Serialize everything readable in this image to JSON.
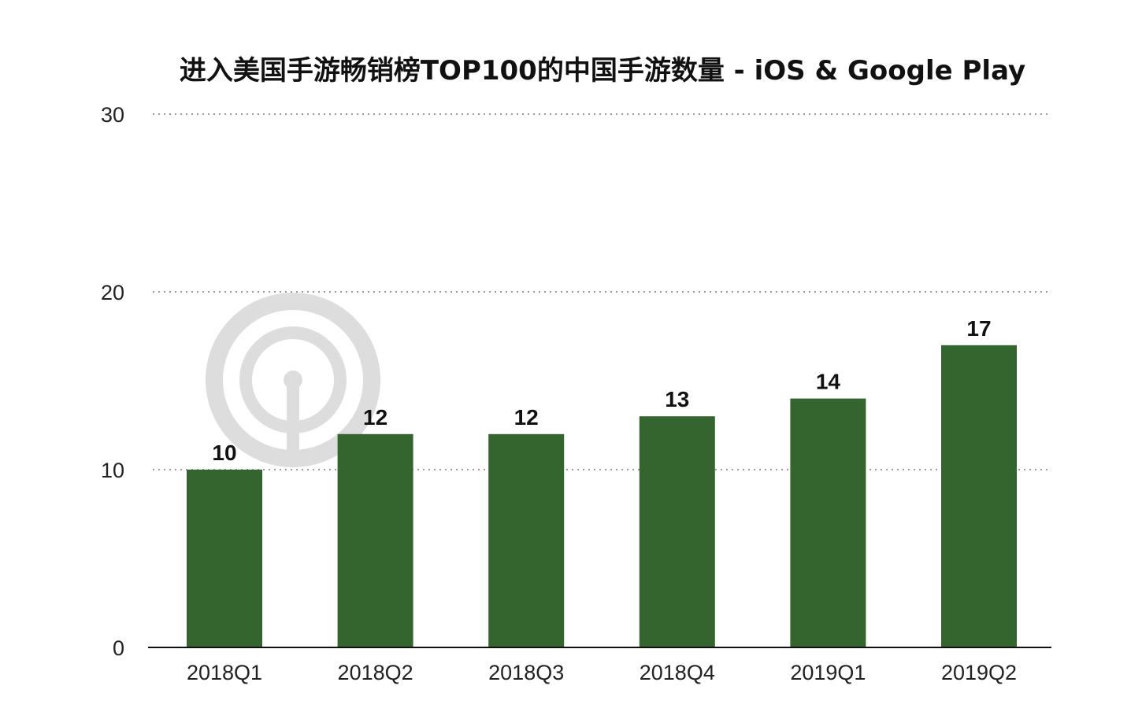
{
  "chart_data": {
    "type": "bar",
    "title": "进入美国手游畅销榜TOP100的中国手游数量 - iOS & Google Play",
    "categories": [
      "2018Q1",
      "2018Q2",
      "2018Q3",
      "2018Q4",
      "2019Q1",
      "2019Q2"
    ],
    "values": [
      10,
      12,
      12,
      13,
      14,
      17
    ],
    "data_labels": [
      "10",
      "12",
      "12",
      "13",
      "14",
      "17"
    ],
    "xlabel": "",
    "ylabel": "",
    "ylim": [
      0,
      30
    ],
    "yticks": [
      0,
      10,
      20,
      30
    ],
    "ytick_labels": [
      "0",
      "10",
      "20",
      "30"
    ],
    "grid": true,
    "legend": "none",
    "bar_color": "#35652e",
    "watermark": "SensorTower"
  }
}
